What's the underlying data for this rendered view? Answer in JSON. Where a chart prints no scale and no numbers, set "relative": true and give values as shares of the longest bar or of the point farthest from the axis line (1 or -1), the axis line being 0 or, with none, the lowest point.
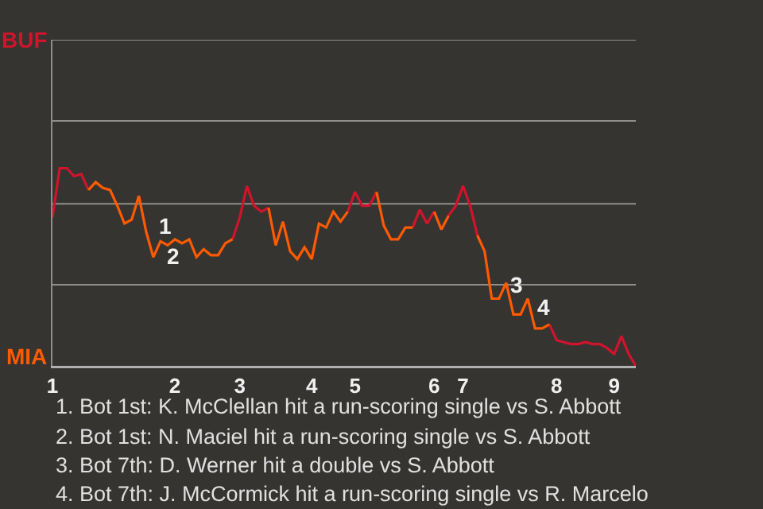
{
  "chart_data": {
    "type": "line",
    "categories": [
      "1",
      null,
      null,
      null,
      null,
      null,
      null,
      null,
      null,
      null,
      null,
      null,
      null,
      null,
      null,
      null,
      null,
      "2",
      null,
      null,
      null,
      null,
      null,
      null,
      null,
      null,
      "3",
      null,
      null,
      null,
      null,
      null,
      null,
      null,
      null,
      null,
      "4",
      null,
      null,
      null,
      null,
      null,
      "5",
      null,
      null,
      null,
      null,
      null,
      null,
      null,
      null,
      null,
      null,
      "6",
      null,
      null,
      null,
      "7",
      null,
      null,
      null,
      null,
      null,
      null,
      null,
      null,
      null,
      null,
      null,
      null,
      "8",
      null,
      null,
      null,
      null,
      null,
      null,
      null,
      "9",
      null,
      null,
      null
    ],
    "relative": true,
    "series": [
      {
        "color": "#d0142c",
        "values": [
          0.75,
          1,
          1,
          0.96,
          0.97,
          0.89,
          null,
          null,
          null,
          null,
          null,
          null,
          null,
          null,
          null,
          null,
          null,
          null,
          null,
          null,
          null,
          null,
          null,
          null,
          null,
          0.64,
          0.75,
          0.91,
          0.81,
          0.78,
          0.8,
          null,
          null,
          null,
          null,
          null,
          null,
          null,
          null,
          null,
          null,
          0.78,
          0.88,
          0.81,
          0.81,
          0.88,
          null,
          null,
          null,
          null,
          0.7,
          0.79,
          0.72,
          0.78,
          null,
          0.76,
          0.81,
          0.91,
          0.81,
          0.66,
          null,
          null,
          null,
          null,
          null,
          null,
          null,
          null,
          null,
          0.21,
          0.13,
          0.12,
          0.11,
          0.11,
          0.12,
          0.11,
          0.11,
          0.09,
          0.06,
          0.15,
          0.06,
          0
        ]
      },
      {
        "color": "#ff5a00",
        "values": [
          null,
          null,
          null,
          null,
          null,
          0.89,
          0.93,
          0.9,
          0.89,
          0.81,
          0.72,
          0.74,
          0.86,
          0.68,
          0.55,
          0.63,
          0.61,
          0.64,
          0.62,
          0.64,
          0.55,
          0.59,
          0.56,
          0.56,
          0.62,
          0.64,
          null,
          null,
          null,
          null,
          0.8,
          0.61,
          0.73,
          0.58,
          0.54,
          0.6,
          0.54,
          0.72,
          0.7,
          0.78,
          0.73,
          0.78,
          null,
          null,
          null,
          0.88,
          0.71,
          0.64,
          0.64,
          0.7,
          0.7,
          null,
          null,
          0.78,
          0.69,
          0.76,
          null,
          null,
          null,
          0.66,
          0.58,
          0.34,
          0.34,
          0.42,
          0.26,
          0.26,
          0.34,
          0.19,
          0.19,
          0.21,
          null,
          null,
          null,
          null,
          null,
          null,
          null,
          null,
          null,
          null,
          null,
          null
        ]
      }
    ],
    "ref_lines": [
      {
        "axis": "y",
        "value": 0.41,
        "color": "#8f8e8c"
      },
      {
        "axis": "y",
        "value": 0.82,
        "color": "#8f8e8c"
      },
      {
        "axis": "y",
        "value": 1.24,
        "color": "#8f8e8c"
      },
      {
        "axis": "y",
        "value": 1.65,
        "color": "#8f8e8c"
      }
    ],
    "annotations": [
      "BUF",
      "MIA",
      "1",
      "2",
      "3",
      "4",
      "1. Bot 1st: K. McClellan hit a run-scoring single vs S. Abbott",
      "2. Bot 1st: N. Maciel hit a run-scoring single vs S. Abbott",
      "3. Bot 7th: D. Werner hit a double vs S. Abbott",
      "4. Bot 7th: J. McCormick hit a run-scoring single vs R. Marcelo"
    ]
  }
}
